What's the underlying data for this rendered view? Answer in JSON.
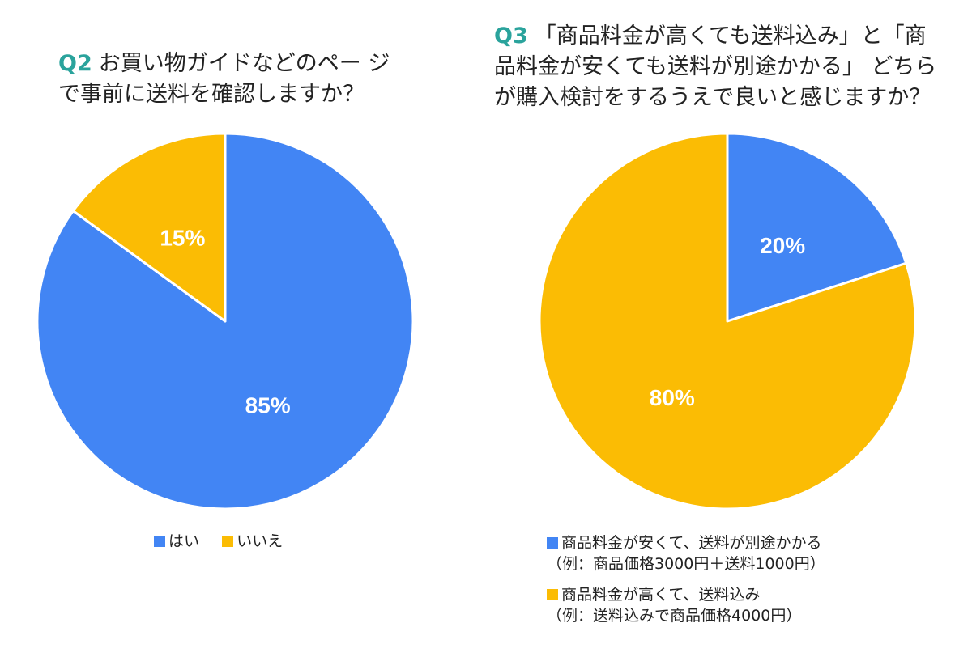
{
  "chart_data": [
    {
      "type": "pie",
      "title_prefix": "Q2",
      "title_lines": [
        "お買い物ガイドなどのペー ジ",
        "で事前に送料を確認しますか？"
      ],
      "slices": [
        {
          "label": "はい",
          "value": 85,
          "display": "85%",
          "color": "#4285f4"
        },
        {
          "label": "いいえ",
          "value": 15,
          "display": "15%",
          "color": "#fbbc04"
        }
      ],
      "legend": [
        "はい",
        "いいえ"
      ]
    },
    {
      "type": "pie",
      "title_prefix": "Q3",
      "title_lines": [
        "「商品料金が高くても送料込み」と「商",
        "品料金が安くても送料が別途かかる」 どちら",
        "が購入検討をするうえで良いと感じますか？"
      ],
      "slices": [
        {
          "label": "商品料金が安くて、送料が別途かかる",
          "sublabel": "（例：商品価格3000円＋送料1000円）",
          "value": 20,
          "display": "20%",
          "color": "#4285f4"
        },
        {
          "label": "商品料金が高くて、送料込み",
          "sublabel": "（例：送料込みで商品価格4000円）",
          "value": 80,
          "display": "80%",
          "color": "#fbbc04"
        }
      ]
    }
  ]
}
